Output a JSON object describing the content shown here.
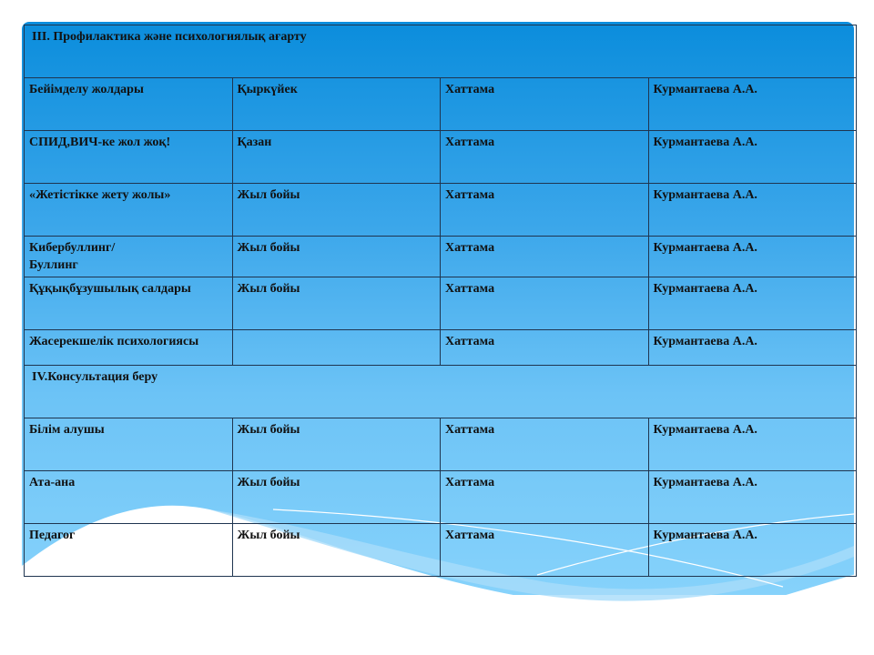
{
  "sections": [
    {
      "title": "ІІІ. Профилактика және психологиялық  ағарту",
      "rows": [
        [
          "Бейімделу жолдары",
          " Қыркүйек",
          "Хаттама",
          "Курмантаева А.А."
        ],
        [
          "СПИД,ВИЧ-ке жол жоқ!",
          "Қазан",
          "Хаттама",
          "Курмантаева А.А."
        ],
        [
          "«Жетістікке жету жолы»",
          "Жыл бойы",
          "Хаттама",
          "Курмантаева А.А."
        ],
        [
          "Кибербуллинг/\nБуллинг",
          "Жыл бойы",
          "Хаттама",
          "Курмантаева А.А."
        ],
        [
          "Құқықбұзушылық салдары",
          "Жыл бойы",
          "Хаттама",
          "Курмантаева А.А."
        ],
        [
          "Жасерекшелік психологиясы",
          "",
          "Хаттама",
          "Курмантаева А.А."
        ]
      ]
    },
    {
      "title": "ІV.Консультация беру",
      "rows": [
        [
          "Білім алушы",
          "Жыл бойы",
          "Хаттама",
          "Курмантаева А.А."
        ],
        [
          "Ата-ана",
          "Жыл бойы",
          "Хаттама",
          "Курмантаева А.А."
        ],
        [
          "Педагог",
          "Жыл бойы",
          "Хаттама",
          "Курмантаева А.А."
        ]
      ]
    }
  ],
  "colors": {
    "top": "#0b8ddc",
    "bottom": "#86d2fb",
    "border": "#1f3550"
  }
}
